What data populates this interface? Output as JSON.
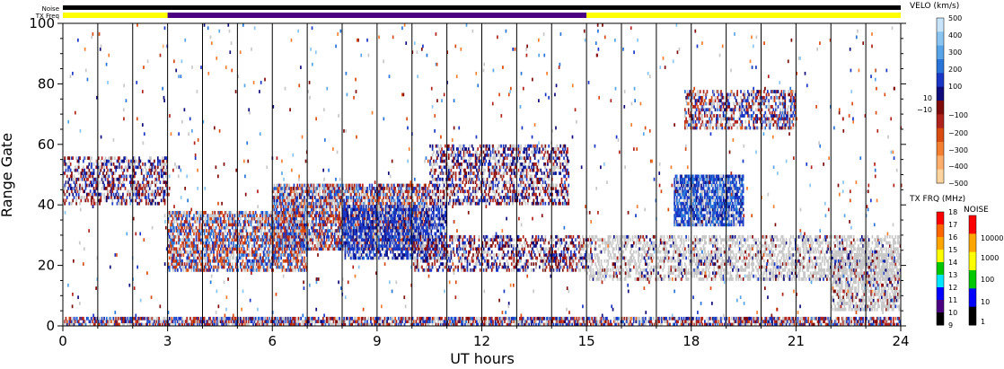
{
  "chart_data": {
    "type": "heatmap",
    "title": "",
    "xlabel": "UT hours",
    "ylabel": "Range Gate",
    "xlim": [
      0,
      24
    ],
    "ylim": [
      0,
      100
    ],
    "x_ticks": [
      "0",
      "3",
      "6",
      "9",
      "12",
      "15",
      "18",
      "21",
      "24"
    ],
    "y_ticks": [
      "0",
      "20",
      "40",
      "60",
      "80",
      "100"
    ],
    "grid": "vertical lines every 1 UT hour",
    "strip_labels": {
      "noise": "Noise",
      "txfreq": "TX Freq"
    },
    "tx_freq_segments": [
      {
        "start": 0,
        "end": 3,
        "color": "#ffff00"
      },
      {
        "start": 3,
        "end": 15,
        "color": "#4b0082"
      },
      {
        "start": 15,
        "end": 24,
        "color": "#ffff00"
      }
    ],
    "noise_strip_color": "#000000",
    "regions": [
      {
        "label": "gate-0 band",
        "type": "mixed",
        "t": [
          0,
          24
        ],
        "gate": [
          0,
          3
        ],
        "velocity": -150,
        "density": 0.7
      },
      {
        "label": "early patch",
        "type": "mixed",
        "t": [
          0,
          3
        ],
        "gate": [
          40,
          56
        ],
        "velocity": -100,
        "density": 0.45
      },
      {
        "label": "main band A",
        "type": "mixed",
        "t": [
          3,
          7
        ],
        "gate": [
          18,
          38
        ],
        "velocity": -200,
        "density": 0.65
      },
      {
        "label": "main band B",
        "type": "mixed",
        "t": [
          6,
          10.5
        ],
        "gate": [
          25,
          47
        ],
        "velocity": -180,
        "density": 0.7
      },
      {
        "label": "main band C",
        "type": "toward",
        "t": [
          8,
          11
        ],
        "gate": [
          22,
          40
        ],
        "velocity": 150,
        "density": 0.6
      },
      {
        "label": "upper arc",
        "type": "mixed",
        "t": [
          10.5,
          14.5
        ],
        "gate": [
          40,
          60
        ],
        "velocity": 100,
        "density": 0.45
      },
      {
        "label": "mid band",
        "type": "mixed",
        "t": [
          10,
          15
        ],
        "gate": [
          18,
          30
        ],
        "velocity": -100,
        "density": 0.45
      },
      {
        "label": "late band",
        "type": "ground",
        "t": [
          15,
          24
        ],
        "gate": [
          15,
          30
        ],
        "velocity": 0,
        "density": 0.45
      },
      {
        "label": "blob 18-19h",
        "type": "toward",
        "t": [
          17.5,
          19.5
        ],
        "gate": [
          33,
          50
        ],
        "velocity": 200,
        "density": 0.8
      },
      {
        "label": "late patch",
        "type": "ground",
        "t": [
          22,
          24
        ],
        "gate": [
          5,
          25
        ],
        "velocity": 0,
        "density": 0.55
      },
      {
        "label": "features near 70",
        "type": "mixed",
        "t": [
          17.8,
          21
        ],
        "gate": [
          65,
          78
        ],
        "velocity": -150,
        "density": 0.5
      }
    ],
    "colorbars": [
      {
        "title": "VELO (km/s)",
        "colors": [
          "#fdd49e",
          "#fdae6b",
          "#f57f30",
          "#d94c10",
          "#b0231c",
          "#7f0a0a",
          "#100b7a",
          "#1a36c4",
          "#2874d8",
          "#58a4e8",
          "#8ac4f0",
          "#c8e4fa"
        ],
        "labels": [
          "500",
          "400",
          "300",
          "200",
          "100",
          "10",
          "−10",
          "−100",
          "−200",
          "−300",
          "−400",
          "−500"
        ]
      },
      {
        "title": "TX FRQ (MHz)",
        "colors": [
          "#000000",
          "#4b0082",
          "#0000ff",
          "#00e6ff",
          "#00c800",
          "#ffff00",
          "#ffa500",
          "#ff6600",
          "#ff0000"
        ],
        "labels": [
          "18",
          "17",
          "16",
          "15",
          "14",
          "13",
          "12",
          "11",
          "10",
          "9"
        ]
      },
      {
        "title": "NOISE",
        "colors": [
          "#000000",
          "#0000ff",
          "#00c800",
          "#ffff00",
          "#ffa500",
          "#ff0000"
        ],
        "labels": [
          "10000",
          "1000",
          "100",
          "10",
          "1"
        ]
      }
    ]
  }
}
